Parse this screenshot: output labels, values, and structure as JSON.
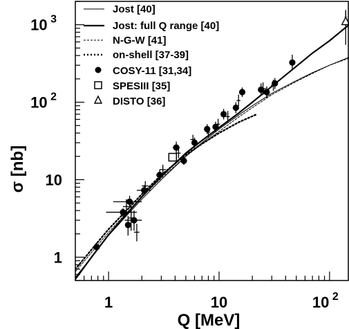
{
  "chart_data": {
    "type": "scatter",
    "title": "",
    "xlabel": "Q [MeV]",
    "ylabel": "σ [nb]",
    "xscale": "log",
    "yscale": "log",
    "xlim": [
      0.5,
      150
    ],
    "ylim": [
      0.5,
      2000
    ],
    "x_ticks": [
      {
        "value": 1,
        "label": "1",
        "exp": ""
      },
      {
        "value": 10,
        "label": "10",
        "exp": ""
      },
      {
        "value": 100,
        "label": "10",
        "exp": "2"
      }
    ],
    "y_ticks": [
      {
        "value": 1,
        "label": "1",
        "exp": ""
      },
      {
        "value": 10,
        "label": "10",
        "exp": ""
      },
      {
        "value": 100,
        "label": "10",
        "exp": "2"
      },
      {
        "value": 1000,
        "label": "10",
        "exp": "3"
      }
    ],
    "legend_position": "top-left",
    "legend": [
      {
        "label": "Jost [40]",
        "kind": "line",
        "style": "thin"
      },
      {
        "label": "Jost: full Q range [40]",
        "kind": "line",
        "style": "thick"
      },
      {
        "label": "N-G-W [41]",
        "kind": "line",
        "style": "thin-dashed"
      },
      {
        "label": "on-shell [37-39]",
        "kind": "line",
        "style": "thick-dotted"
      },
      {
        "label": "COSY-11 [31,34]",
        "kind": "marker",
        "style": "filled-circle"
      },
      {
        "label": "SPESIII [35]",
        "kind": "marker",
        "style": "open-square"
      },
      {
        "label": "DISTO [36]",
        "kind": "marker",
        "style": "open-triangle"
      }
    ],
    "curves": [
      {
        "name": "Jost [40]",
        "style": "thin",
        "points": [
          [
            0.5,
            0.55
          ],
          [
            0.7,
            1.0
          ],
          [
            1.0,
            1.9
          ],
          [
            1.5,
            3.6
          ],
          [
            2.0,
            5.6
          ],
          [
            3.0,
            10.0
          ],
          [
            5.0,
            20.0
          ],
          [
            7.0,
            30.0
          ],
          [
            10.0,
            45.0
          ],
          [
            15.0,
            68.0
          ],
          [
            20.0,
            90.0
          ],
          [
            30.0,
            130.0
          ],
          [
            50.0,
            190.0
          ],
          [
            70.0,
            240.0
          ],
          [
            100.0,
            300.0
          ],
          [
            150.0,
            380.0
          ]
        ]
      },
      {
        "name": "Jost: full Q range [40]",
        "style": "thick",
        "points": [
          [
            0.5,
            0.52
          ],
          [
            0.7,
            1.0
          ],
          [
            1.0,
            1.95
          ],
          [
            1.5,
            3.8
          ],
          [
            2.0,
            6.0
          ],
          [
            3.0,
            11.0
          ],
          [
            5.0,
            22.0
          ],
          [
            7.0,
            32.0
          ],
          [
            10.0,
            47.0
          ],
          [
            15.0,
            72.0
          ],
          [
            20.0,
            100.0
          ],
          [
            30.0,
            160.0
          ],
          [
            50.0,
            290.0
          ],
          [
            70.0,
            430.0
          ],
          [
            100.0,
            620.0
          ],
          [
            150.0,
            1000.0
          ]
        ]
      },
      {
        "name": "N-G-W [41]",
        "style": "thin-dashed",
        "points": [
          [
            0.5,
            0.65
          ],
          [
            0.7,
            1.15
          ],
          [
            1.0,
            2.1
          ],
          [
            1.5,
            3.9
          ],
          [
            2.0,
            6.0
          ],
          [
            3.0,
            10.5
          ],
          [
            5.0,
            20.0
          ],
          [
            7.0,
            29.0
          ],
          [
            10.0,
            42.0
          ],
          [
            15.0,
            64.0
          ],
          [
            20.0,
            85.0
          ],
          [
            30.0,
            125.0
          ],
          [
            50.0,
            185.0
          ],
          [
            70.0,
            235.0
          ],
          [
            100.0,
            300.0
          ],
          [
            150.0,
            370.0
          ]
        ]
      },
      {
        "name": "on-shell [37-39]",
        "style": "thick-dotted",
        "points": [
          [
            0.5,
            0.7
          ],
          [
            0.7,
            1.25
          ],
          [
            1.0,
            2.3
          ],
          [
            1.5,
            4.2
          ],
          [
            2.0,
            6.5
          ],
          [
            3.0,
            11.5
          ],
          [
            5.0,
            21.0
          ],
          [
            7.0,
            29.0
          ],
          [
            10.0,
            40.0
          ],
          [
            15.0,
            55.0
          ],
          [
            22.0,
            70.0
          ]
        ]
      }
    ],
    "series": [
      {
        "name": "COSY-11 [31,34]",
        "marker": "filled-circle",
        "points": [
          {
            "x": 0.78,
            "y": 1.35,
            "ylo": 1.2,
            "yhi": 1.55,
            "xlo": 0.75,
            "xhi": 0.81
          },
          {
            "x": 1.35,
            "y": 3.8,
            "ylo": 3.3,
            "yhi": 4.3,
            "xlo": 0.95,
            "xhi": 1.8
          },
          {
            "x": 1.5,
            "y": 2.6,
            "ylo": 1.9,
            "yhi": 3.4,
            "xlo": 1.45,
            "xhi": 1.55
          },
          {
            "x": 1.55,
            "y": 5.2,
            "ylo": 4.3,
            "yhi": 6.2,
            "xlo": 1.1,
            "xhi": 2.0
          },
          {
            "x": 1.7,
            "y": 3.0,
            "ylo": 2.2,
            "yhi": 4.0,
            "xlo": 1.4,
            "xhi": 2.0
          },
          {
            "x": 2.1,
            "y": 7.3,
            "ylo": 6.3,
            "yhi": 8.5,
            "xlo": 1.8,
            "xhi": 2.4
          },
          {
            "x": 2.9,
            "y": 11.5,
            "ylo": 9.8,
            "yhi": 13.5,
            "xlo": 2.7,
            "xhi": 3.1
          },
          {
            "x": 4.1,
            "y": 26.0,
            "ylo": 22.0,
            "yhi": 31.0,
            "xlo": 3.8,
            "xhi": 4.4
          },
          {
            "x": 4.8,
            "y": 17.5,
            "ylo": 15.5,
            "yhi": 20.0,
            "xlo": 4.6,
            "xhi": 5.0
          },
          {
            "x": 6.0,
            "y": 30.0,
            "ylo": 26.0,
            "yhi": 35.0,
            "xlo": 5.7,
            "xhi": 6.3
          },
          {
            "x": 7.8,
            "y": 45.0,
            "ylo": 39.0,
            "yhi": 52.0,
            "xlo": 7.4,
            "xhi": 8.2
          },
          {
            "x": 9.3,
            "y": 48.0,
            "ylo": 41.0,
            "yhi": 56.0,
            "xlo": 8.9,
            "xhi": 9.7
          },
          {
            "x": 11.0,
            "y": 70.0,
            "ylo": 60.0,
            "yhi": 82.0,
            "xlo": 10.5,
            "xhi": 11.5
          },
          {
            "x": 14.2,
            "y": 85.0,
            "ylo": 72.0,
            "yhi": 100.0,
            "xlo": 13.6,
            "xhi": 14.8
          },
          {
            "x": 16.2,
            "y": 135.0,
            "ylo": 117.0,
            "yhi": 155.0,
            "xlo": 15.6,
            "xhi": 16.8
          },
          {
            "x": 24.0,
            "y": 145.0,
            "ylo": 120.0,
            "yhi": 175.0,
            "xlo": 22.5,
            "xhi": 25.5
          },
          {
            "x": 27.0,
            "y": 135.0,
            "ylo": 113.0,
            "yhi": 160.0,
            "xlo": 25.5,
            "xhi": 28.5
          },
          {
            "x": 32.0,
            "y": 175.0,
            "ylo": 148.0,
            "yhi": 205.0,
            "xlo": 30.0,
            "xhi": 34.0
          },
          {
            "x": 46.0,
            "y": 325.0,
            "ylo": 260.0,
            "yhi": 410.0,
            "xlo": 44.0,
            "xhi": 48.0
          }
        ]
      },
      {
        "name": "SPESIII [35]",
        "marker": "open-square",
        "points": [
          {
            "x": 3.8,
            "y": 19.5,
            "ylo": 17.5,
            "yhi": 22.0,
            "xlo": 3.5,
            "xhi": 4.1
          }
        ]
      },
      {
        "name": "DISTO [36]",
        "marker": "open-triangle",
        "points": [
          {
            "x": 140.0,
            "y": 1100.0,
            "ylo": 550.0,
            "yhi": 1500.0,
            "xlo": 140.0,
            "xhi": 140.0
          }
        ]
      }
    ],
    "extra_markers": {
      "style": "cross",
      "points": [
        {
          "x": 1.45,
          "y": 4.5,
          "ylo": 3.6,
          "yhi": 5.6,
          "xlo": 1.35,
          "xhi": 1.6
        },
        {
          "x": 1.6,
          "y": 3.2,
          "ylo": 2.2,
          "yhi": 4.6,
          "xlo": 1.5,
          "xhi": 1.7
        },
        {
          "x": 1.8,
          "y": 2.1,
          "ylo": 1.6,
          "yhi": 2.7,
          "xlo": 1.7,
          "xhi": 1.9
        },
        {
          "x": 2.15,
          "y": 8.3,
          "ylo": 7.2,
          "yhi": 9.6,
          "xlo": 2.0,
          "xhi": 2.3
        },
        {
          "x": 3.1,
          "y": 13.5,
          "ylo": 11.6,
          "yhi": 15.6,
          "xlo": 2.9,
          "xhi": 3.3
        },
        {
          "x": 4.3,
          "y": 22.0,
          "ylo": 19.0,
          "yhi": 25.5,
          "xlo": 4.1,
          "xhi": 4.5
        },
        {
          "x": 5.8,
          "y": 33.0,
          "ylo": 28.5,
          "yhi": 38.0,
          "xlo": 5.5,
          "xhi": 6.1
        },
        {
          "x": 8.0,
          "y": 41.0,
          "ylo": 35.0,
          "yhi": 48.0,
          "xlo": 7.7,
          "xhi": 8.3
        },
        {
          "x": 9.8,
          "y": 52.0,
          "ylo": 44.0,
          "yhi": 61.0,
          "xlo": 9.4,
          "xhi": 10.2
        },
        {
          "x": 12.0,
          "y": 65.0,
          "ylo": 55.0,
          "yhi": 77.0,
          "xlo": 11.5,
          "xhi": 12.5
        },
        {
          "x": 15.0,
          "y": 105.0,
          "ylo": 88.0,
          "yhi": 125.0,
          "xlo": 14.4,
          "xhi": 15.6
        },
        {
          "x": 25.0,
          "y": 150.0,
          "ylo": 125.0,
          "yhi": 180.0,
          "xlo": 23.5,
          "xhi": 26.5
        },
        {
          "x": 31.0,
          "y": 165.0,
          "ylo": 140.0,
          "yhi": 195.0,
          "xlo": 29.5,
          "xhi": 32.5
        },
        {
          "x": 140.0,
          "y": 1250.0,
          "ylo": 1000.0,
          "yhi": 1550.0,
          "xlo": 137.0,
          "xhi": 143.0
        }
      ]
    }
  }
}
